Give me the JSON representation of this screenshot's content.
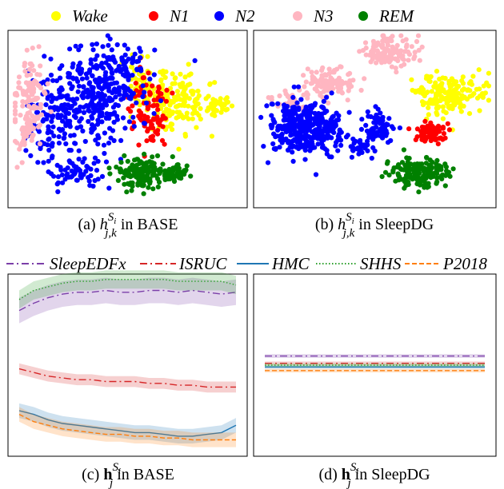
{
  "chart_data": [
    {
      "type": "scatter",
      "panel": "a",
      "title": "",
      "legend_position": "top",
      "caption": {
        "prefix": "(a) ",
        "symbol": "h",
        "sub": "j,k",
        "sup_base": "S",
        "sup_sub": "i",
        "suffix": " in BASE"
      },
      "grid": false,
      "series": [
        {
          "name": "Wake",
          "color": "#ffff00",
          "clusters": [
            [
              0.7,
              0.4,
              0.12,
              0.18,
              160
            ],
            [
              0.88,
              0.43,
              0.06,
              0.05,
              40
            ],
            [
              0.55,
              0.3,
              0.05,
              0.12,
              50
            ]
          ]
        },
        {
          "name": "N1",
          "color": "#ff0000",
          "clusters": [
            [
              0.58,
              0.42,
              0.07,
              0.16,
              70
            ],
            [
              0.62,
              0.55,
              0.05,
              0.1,
              30
            ]
          ]
        },
        {
          "name": "N2",
          "color": "#0000ff",
          "clusters": [
            [
              0.35,
              0.38,
              0.17,
              0.24,
              330
            ],
            [
              0.18,
              0.55,
              0.1,
              0.2,
              90
            ],
            [
              0.48,
              0.2,
              0.08,
              0.1,
              50
            ],
            [
              0.3,
              0.8,
              0.12,
              0.08,
              60
            ]
          ]
        },
        {
          "name": "N3",
          "color": "#ffb6c1",
          "clusters": [
            [
              0.1,
              0.36,
              0.07,
              0.2,
              90
            ],
            [
              0.07,
              0.55,
              0.05,
              0.14,
              40
            ]
          ]
        },
        {
          "name": "REM",
          "color": "#008000",
          "clusters": [
            [
              0.55,
              0.8,
              0.1,
              0.08,
              140
            ],
            [
              0.7,
              0.8,
              0.05,
              0.05,
              50
            ]
          ]
        }
      ]
    },
    {
      "type": "scatter",
      "panel": "b",
      "title": "",
      "caption": {
        "prefix": "(b) ",
        "symbol": "h",
        "sub": "j,k",
        "sup_base": "S",
        "sup_sub": "i",
        "suffix": " in SleepDG"
      },
      "grid": false,
      "series": [
        {
          "name": "N3",
          "color": "#ffb6c1",
          "clusters": [
            [
              0.55,
              0.12,
              0.1,
              0.08,
              120
            ],
            [
              0.3,
              0.3,
              0.1,
              0.08,
              100
            ],
            [
              0.15,
              0.4,
              0.06,
              0.06,
              40
            ]
          ]
        },
        {
          "name": "N2",
          "color": "#0000ff",
          "clusters": [
            [
              0.22,
              0.55,
              0.14,
              0.14,
              360
            ],
            [
              0.52,
              0.55,
              0.06,
              0.08,
              70
            ],
            [
              0.45,
              0.65,
              0.05,
              0.05,
              30
            ]
          ]
        },
        {
          "name": "Wake",
          "color": "#ffff00",
          "clusters": [
            [
              0.8,
              0.36,
              0.12,
              0.09,
              180
            ]
          ]
        },
        {
          "name": "N1",
          "color": "#ff0000",
          "clusters": [
            [
              0.73,
              0.58,
              0.06,
              0.05,
              70
            ]
          ]
        },
        {
          "name": "REM",
          "color": "#008000",
          "clusters": [
            [
              0.68,
              0.8,
              0.11,
              0.07,
              170
            ]
          ]
        }
      ]
    },
    {
      "type": "line",
      "panel": "c",
      "title": "",
      "legend_position": "top",
      "caption": {
        "prefix": "(c) ",
        "symbol": "h",
        "sub": "j",
        "sup_base": "S",
        "sup_sub": "i",
        "suffix": " in BASE"
      },
      "ylim": [
        0,
        1
      ],
      "grid": false,
      "series": [
        {
          "name": "SleepEDFx",
          "color": "#7b3fa9",
          "dash": "dashdot",
          "mean": [
            0.8,
            0.84,
            0.87,
            0.89,
            0.9,
            0.9,
            0.91,
            0.9,
            0.9,
            0.91,
            0.91,
            0.9,
            0.91,
            0.9,
            0.89,
            0.9
          ],
          "band": 0.07
        },
        {
          "name": "ISRUC",
          "color": "#d62728",
          "dash": "dashdot",
          "mean": [
            0.48,
            0.46,
            0.44,
            0.43,
            0.42,
            0.42,
            0.41,
            0.41,
            0.41,
            0.4,
            0.4,
            0.39,
            0.39,
            0.38,
            0.38,
            0.38
          ],
          "band": 0.03
        },
        {
          "name": "HMC",
          "color": "#1f77b4",
          "dash": "solid",
          "mean": [
            0.25,
            0.23,
            0.2,
            0.18,
            0.17,
            0.16,
            0.15,
            0.14,
            0.13,
            0.13,
            0.12,
            0.11,
            0.11,
            0.12,
            0.13,
            0.17
          ],
          "band": 0.04
        },
        {
          "name": "SHHS",
          "color": "#2ca02c",
          "dash": "dotted",
          "mean": [
            0.86,
            0.91,
            0.93,
            0.95,
            0.96,
            0.96,
            0.97,
            0.97,
            0.97,
            0.97,
            0.97,
            0.96,
            0.96,
            0.96,
            0.96,
            0.94
          ],
          "band": 0.05
        },
        {
          "name": "P2018",
          "color": "#ff7f0e",
          "dash": "dashed",
          "mean": [
            0.23,
            0.19,
            0.17,
            0.15,
            0.14,
            0.13,
            0.12,
            0.12,
            0.11,
            0.11,
            0.1,
            0.1,
            0.09,
            0.09,
            0.09,
            0.09
          ],
          "band": 0.04
        }
      ]
    },
    {
      "type": "line",
      "panel": "d",
      "title": "",
      "caption": {
        "prefix": "(d) ",
        "symbol": "h",
        "sub": "j",
        "sup_base": "S",
        "sup_sub": "i",
        "suffix": " in SleepDG"
      },
      "ylim": [
        0,
        1
      ],
      "grid": false,
      "series": [
        {
          "name": "SleepEDFx",
          "color": "#7b3fa9",
          "dash": "dashdot",
          "mean": [
            0.55,
            0.55,
            0.55,
            0.55,
            0.55,
            0.55,
            0.55,
            0.55,
            0.55,
            0.55,
            0.55,
            0.55,
            0.55,
            0.55,
            0.55,
            0.55
          ],
          "band": 0.01
        },
        {
          "name": "ISRUC",
          "color": "#d62728",
          "dash": "dashdot",
          "mean": [
            0.51,
            0.51,
            0.51,
            0.51,
            0.51,
            0.51,
            0.51,
            0.51,
            0.51,
            0.51,
            0.51,
            0.51,
            0.51,
            0.51,
            0.51,
            0.51
          ],
          "band": 0.01
        },
        {
          "name": "HMC",
          "color": "#1f77b4",
          "dash": "solid",
          "mean": [
            0.49,
            0.49,
            0.49,
            0.49,
            0.49,
            0.49,
            0.49,
            0.49,
            0.49,
            0.49,
            0.49,
            0.49,
            0.49,
            0.49,
            0.49,
            0.49
          ],
          "band": 0.01
        },
        {
          "name": "SHHS",
          "color": "#2ca02c",
          "dash": "dotted",
          "mean": [
            0.5,
            0.5,
            0.5,
            0.5,
            0.5,
            0.5,
            0.5,
            0.5,
            0.5,
            0.5,
            0.5,
            0.5,
            0.5,
            0.5,
            0.5,
            0.5
          ],
          "band": 0.01
        },
        {
          "name": "P2018",
          "color": "#ff7f0e",
          "dash": "dashed",
          "mean": [
            0.47,
            0.47,
            0.47,
            0.47,
            0.47,
            0.47,
            0.47,
            0.47,
            0.47,
            0.47,
            0.47,
            0.47,
            0.47,
            0.47,
            0.47,
            0.47
          ],
          "band": 0.01
        }
      ]
    }
  ]
}
